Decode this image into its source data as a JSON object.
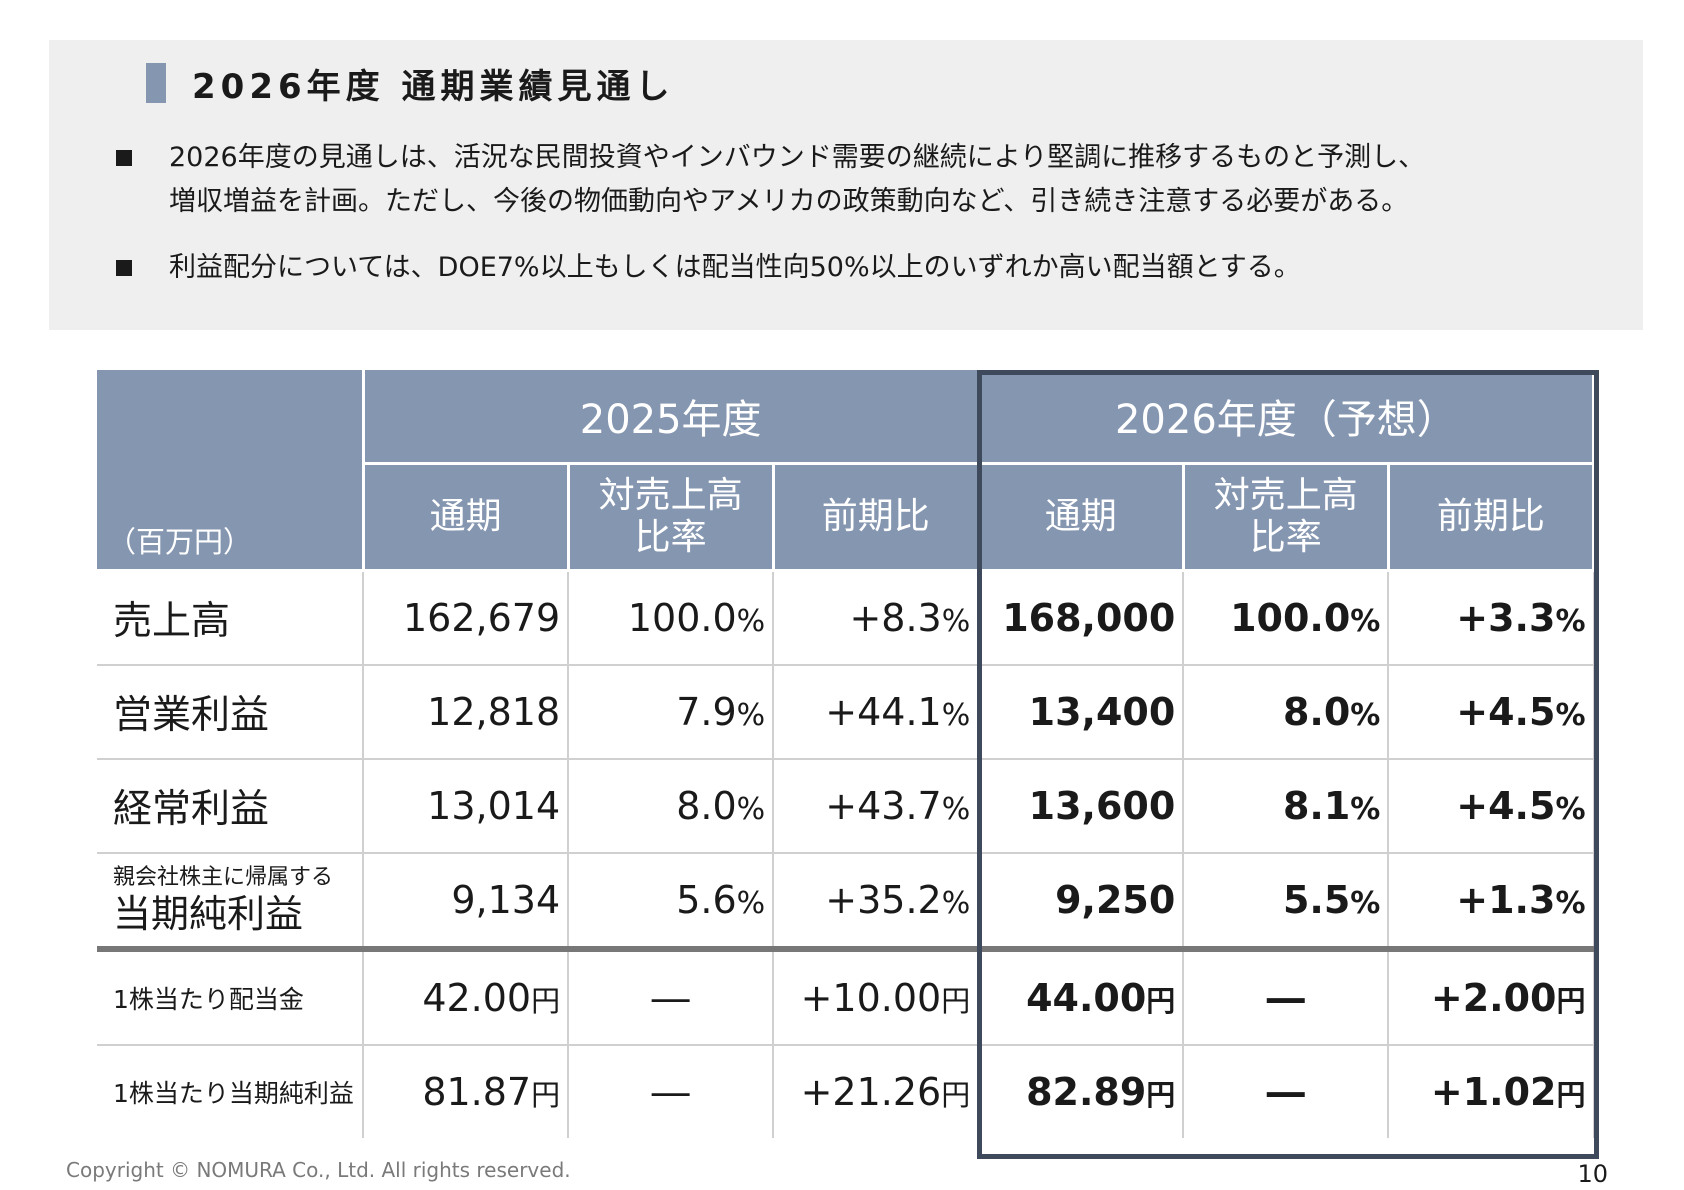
{
  "header": {
    "title": "2026年度 通期業績見通し"
  },
  "bullets": [
    {
      "line1": "2026年度の見通しは、活況な民間投資やインバウンド需要の継続により堅調に推移するものと予測し、",
      "line2": "増収増益を計画。ただし、今後の物価動向やアメリカの政策動向など、引き続き注意する必要がある。"
    },
    {
      "line1": "利益配分については、DOE7%以上もしくは配当性向50%以上のいずれか高い配当額とする。"
    }
  ],
  "table": {
    "unit": "（百万円）",
    "years": [
      "2025年度",
      "2026年度（予想）"
    ],
    "sub_headers": {
      "full_year": "通期",
      "ratio_line1": "対売上高",
      "ratio_line2": "比率",
      "yoy": "前期比"
    },
    "rows": [
      {
        "label": "売上高",
        "y2025": {
          "full": "162,679",
          "ratio": "100.0",
          "yoy": "+8.3"
        },
        "y2026": {
          "full": "168,000",
          "ratio": "100.0",
          "yoy": "+3.3"
        }
      },
      {
        "label": "営業利益",
        "y2025": {
          "full": "12,818",
          "ratio": "7.9",
          "yoy": "+44.1"
        },
        "y2026": {
          "full": "13,400",
          "ratio": "8.0",
          "yoy": "+4.5"
        }
      },
      {
        "label": "経常利益",
        "y2025": {
          "full": "13,014",
          "ratio": "8.0",
          "yoy": "+43.7"
        },
        "y2026": {
          "full": "13,600",
          "ratio": "8.1",
          "yoy": "+4.5"
        }
      },
      {
        "label_small": "親会社株主に帰属する",
        "label": "当期純利益",
        "y2025": {
          "full": "9,134",
          "ratio": "5.6",
          "yoy": "+35.2"
        },
        "y2026": {
          "full": "9,250",
          "ratio": "5.5",
          "yoy": "+1.3"
        }
      },
      {
        "label": "1株当たり配当金",
        "y2025": {
          "full": "42.00",
          "ratio": "―",
          "yoy": "+10.00"
        },
        "y2026": {
          "full": "44.00",
          "ratio": "―",
          "yoy": "+2.00"
        }
      },
      {
        "label": "1株当たり当期純利益",
        "y2025": {
          "full": "81.87",
          "ratio": "―",
          "yoy": "+21.26"
        },
        "y2026": {
          "full": "82.89",
          "ratio": "―",
          "yoy": "+1.02"
        }
      }
    ],
    "pct_unit": "%",
    "yen_unit": "円"
  },
  "footer": {
    "copyright": "Copyright © NOMURA Co., Ltd. All rights reserved.",
    "page_number": "10"
  },
  "colors": {
    "header_fill": "#8596b0",
    "forecast_frame": "#3e4a5c",
    "summary_bg": "#efefef"
  }
}
